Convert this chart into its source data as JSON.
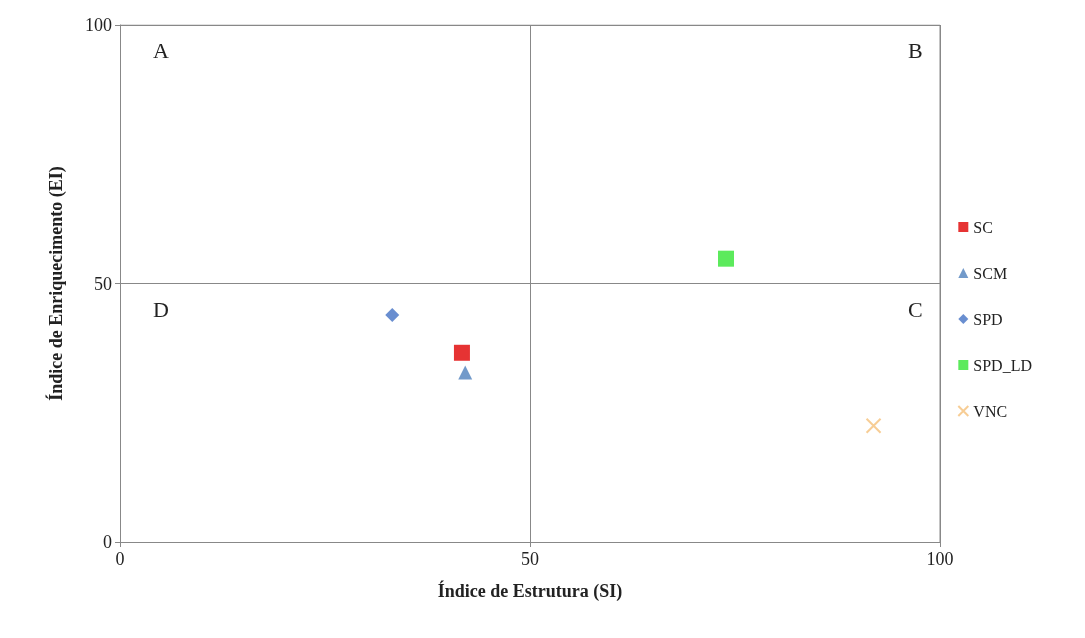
{
  "chart_data": {
    "type": "scatter",
    "xlabel": "Índice de Estrutura (SI)",
    "ylabel": "Índice de Enriquecimento (EI)",
    "xlim": [
      0,
      100
    ],
    "xticks": [
      0,
      50,
      100
    ],
    "ylim": [
      0,
      100
    ],
    "yticks": [
      0,
      50,
      100
    ],
    "grid": true,
    "legend": "right",
    "annotations": [
      "A",
      "B",
      "C",
      "D"
    ],
    "series": [
      {
        "name": "SC",
        "color": "#e00000",
        "marker": "square",
        "x": [
          41.7
        ],
        "values": [
          36.6
        ]
      },
      {
        "name": "SCM",
        "color": "#4f81bd",
        "marker": "triangle",
        "x": [
          42.1
        ],
        "values": [
          32.8
        ]
      },
      {
        "name": "SPD",
        "color": "#4472c4",
        "marker": "diamond",
        "x": [
          33.2
        ],
        "values": [
          43.9
        ]
      },
      {
        "name": "SPD_LD",
        "color": "#33e533",
        "marker": "square",
        "x": [
          73.9
        ],
        "values": [
          54.8
        ]
      },
      {
        "name": "VNC",
        "color": "#f5c07a",
        "marker": "cross",
        "x": [
          91.9
        ],
        "values": [
          22.5
        ]
      }
    ]
  }
}
